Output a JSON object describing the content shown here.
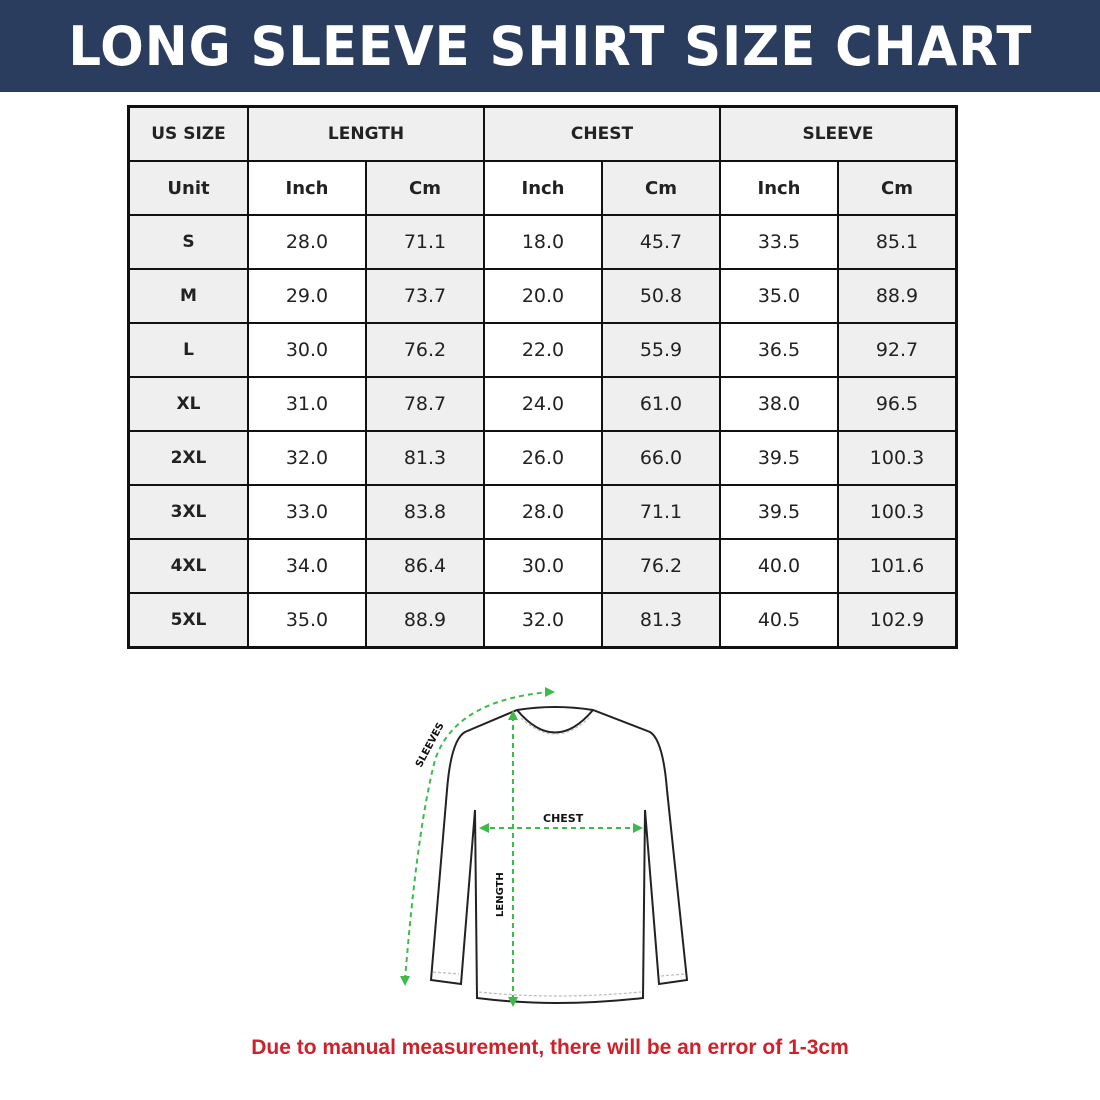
{
  "title": "LONG SLEEVE SHIRT SIZE CHART",
  "table": {
    "group_headers": [
      "US SIZE",
      "LENGTH",
      "CHEST",
      "SLEEVE"
    ],
    "unit_row": [
      "Unit",
      "Inch",
      "Cm",
      "Inch",
      "Cm",
      "Inch",
      "Cm"
    ],
    "rows": [
      [
        "S",
        "28.0",
        "71.1",
        "18.0",
        "45.7",
        "33.5",
        "85.1"
      ],
      [
        "M",
        "29.0",
        "73.7",
        "20.0",
        "50.8",
        "35.0",
        "88.9"
      ],
      [
        "L",
        "30.0",
        "76.2",
        "22.0",
        "55.9",
        "36.5",
        "92.7"
      ],
      [
        "XL",
        "31.0",
        "78.7",
        "24.0",
        "61.0",
        "38.0",
        "96.5"
      ],
      [
        "2XL",
        "32.0",
        "81.3",
        "26.0",
        "66.0",
        "39.5",
        "100.3"
      ],
      [
        "3XL",
        "33.0",
        "83.8",
        "28.0",
        "71.1",
        "39.5",
        "100.3"
      ],
      [
        "4XL",
        "34.0",
        "86.4",
        "30.0",
        "76.2",
        "40.0",
        "101.6"
      ],
      [
        "5XL",
        "35.0",
        "88.9",
        "32.0",
        "81.3",
        "40.5",
        "102.9"
      ]
    ]
  },
  "diagram": {
    "labels": {
      "sleeves": "SLEEVES",
      "chest": "CHEST",
      "length": "LENGTH"
    },
    "measure_color": "#3dbb4a"
  },
  "colors": {
    "banner": "#2b3d5e",
    "note": "#d0202a"
  },
  "note": "Due to manual measurement, there will be an error of 1-3cm"
}
